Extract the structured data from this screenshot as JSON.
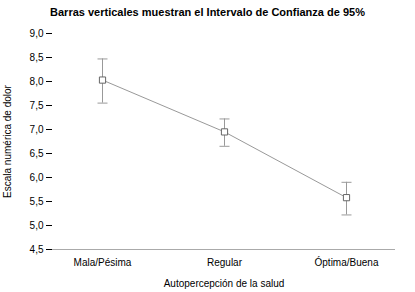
{
  "chart_data": {
    "type": "line",
    "title": "Barras verticales muestran el Intervalo de Confianza de 95%",
    "xlabel": "Autopercepción de la salud",
    "ylabel": "Escala numérica de dolor",
    "categories": [
      "Mala/Pésima",
      "Regular",
      "Óptima/Buena"
    ],
    "values": [
      8.03,
      6.95,
      5.58
    ],
    "ci_lower": [
      7.55,
      6.65,
      5.22
    ],
    "ci_upper": [
      8.47,
      7.22,
      5.9
    ],
    "color": "#999999",
    "marker": "square",
    "ylim": [
      4.5,
      9.0
    ],
    "yticks": [
      {
        "value": 4.5,
        "label": "4,5"
      },
      {
        "value": 5.0,
        "label": "5,0"
      },
      {
        "value": 5.5,
        "label": "5,5"
      },
      {
        "value": 6.0,
        "label": "6,0"
      },
      {
        "value": 6.5,
        "label": "6,5"
      },
      {
        "value": 7.0,
        "label": "7,0"
      },
      {
        "value": 7.5,
        "label": "7,5"
      },
      {
        "value": 8.0,
        "label": "8,0"
      },
      {
        "value": 8.5,
        "label": "8,5"
      },
      {
        "value": 9.0,
        "label": "9,0"
      }
    ],
    "grid": false
  }
}
